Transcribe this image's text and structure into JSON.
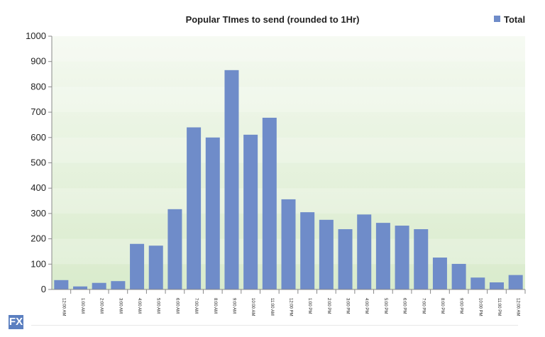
{
  "chart_data": {
    "type": "bar",
    "title": "Popular TImes to send (rounded to 1Hr)",
    "xlabel": "",
    "ylabel": "",
    "ylim": [
      0,
      1000
    ],
    "yticks": [
      0,
      100,
      200,
      300,
      400,
      500,
      600,
      700,
      800,
      900,
      1000
    ],
    "categories": [
      "12:00 AM",
      "1:00 AM",
      "2:00 AM",
      "3:00 AM",
      "4:00 AM",
      "5:00 AM",
      "6:00 AM",
      "7:00 AM",
      "8:00 AM",
      "9:00 AM",
      "10:00 AM",
      "11:00 AM",
      "12:00 PM",
      "1:00 PM",
      "2:00 PM",
      "3:00 PM",
      "4:00 PM",
      "5:00 PM",
      "6:00 PM",
      "7:00 PM",
      "8:00 PM",
      "9:00 PM",
      "10:00 PM",
      "11:00 PM",
      "12:00 AM"
    ],
    "series": [
      {
        "name": "Total",
        "color": "#6f8cc9",
        "values": [
          37,
          12,
          26,
          33,
          180,
          173,
          317,
          640,
          600,
          866,
          611,
          678,
          356,
          305,
          275,
          238,
          296,
          263,
          252,
          238,
          126,
          101,
          47,
          28,
          57
        ]
      }
    ],
    "legend_position": "top-right",
    "grid": false,
    "background_gradient": [
      "#f4f9f0",
      "#d9ebcc"
    ]
  },
  "branding": {
    "logo_text": "FX"
  }
}
